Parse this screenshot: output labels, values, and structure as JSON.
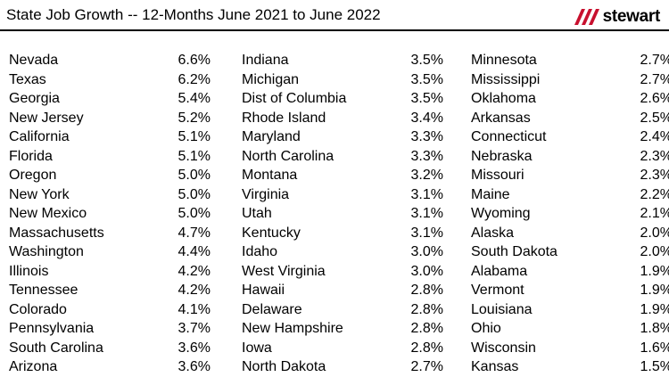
{
  "title": "State Job Growth -- 12-Months June 2021 to June 2022",
  "logo": {
    "text": "stewart",
    "mark_color": "#c8102e"
  },
  "columns": [
    [
      {
        "state": "Nevada",
        "pct": "6.6%"
      },
      {
        "state": "Texas",
        "pct": "6.2%"
      },
      {
        "state": "Georgia",
        "pct": "5.4%"
      },
      {
        "state": "New Jersey",
        "pct": "5.2%"
      },
      {
        "state": "California",
        "pct": "5.1%"
      },
      {
        "state": "Florida",
        "pct": "5.1%"
      },
      {
        "state": "Oregon",
        "pct": "5.0%"
      },
      {
        "state": "New York",
        "pct": "5.0%"
      },
      {
        "state": "New Mexico",
        "pct": "5.0%"
      },
      {
        "state": "Massachusetts",
        "pct": "4.7%"
      },
      {
        "state": "Washington",
        "pct": "4.4%"
      },
      {
        "state": "Illinois",
        "pct": "4.2%"
      },
      {
        "state": "Tennessee",
        "pct": "4.2%"
      },
      {
        "state": "Colorado",
        "pct": "4.1%"
      },
      {
        "state": "Pennsylvania",
        "pct": "3.7%"
      },
      {
        "state": "South Carolina",
        "pct": "3.6%"
      },
      {
        "state": "Arizona",
        "pct": "3.6%"
      }
    ],
    [
      {
        "state": "Indiana",
        "pct": "3.5%"
      },
      {
        "state": "Michigan",
        "pct": "3.5%"
      },
      {
        "state": "Dist of Columbia",
        "pct": "3.5%"
      },
      {
        "state": "Rhode Island",
        "pct": "3.4%"
      },
      {
        "state": "Maryland",
        "pct": "3.3%"
      },
      {
        "state": "North Carolina",
        "pct": "3.3%"
      },
      {
        "state": "Montana",
        "pct": "3.2%"
      },
      {
        "state": "Virginia",
        "pct": "3.1%"
      },
      {
        "state": "Utah",
        "pct": "3.1%"
      },
      {
        "state": "Kentucky",
        "pct": "3.1%"
      },
      {
        "state": "Idaho",
        "pct": "3.0%"
      },
      {
        "state": "West Virginia",
        "pct": "3.0%"
      },
      {
        "state": "Hawaii",
        "pct": "2.8%"
      },
      {
        "state": "Delaware",
        "pct": "2.8%"
      },
      {
        "state": "New Hampshire",
        "pct": "2.8%"
      },
      {
        "state": "Iowa",
        "pct": "2.8%"
      },
      {
        "state": "North Dakota",
        "pct": "2.7%"
      }
    ],
    [
      {
        "state": "Minnesota",
        "pct": "2.7%"
      },
      {
        "state": "Mississippi",
        "pct": "2.7%"
      },
      {
        "state": "Oklahoma",
        "pct": "2.6%"
      },
      {
        "state": "Arkansas",
        "pct": "2.5%"
      },
      {
        "state": "Connecticut",
        "pct": "2.4%"
      },
      {
        "state": "Nebraska",
        "pct": "2.3%"
      },
      {
        "state": "Missouri",
        "pct": "2.3%"
      },
      {
        "state": "Maine",
        "pct": "2.2%"
      },
      {
        "state": "Wyoming",
        "pct": "2.1%"
      },
      {
        "state": "Alaska",
        "pct": "2.0%"
      },
      {
        "state": "South Dakota",
        "pct": "2.0%"
      },
      {
        "state": "Alabama",
        "pct": "1.9%"
      },
      {
        "state": "Vermont",
        "pct": "1.9%"
      },
      {
        "state": "Louisiana",
        "pct": "1.9%"
      },
      {
        "state": "Ohio",
        "pct": "1.8%"
      },
      {
        "state": "Wisconsin",
        "pct": "1.6%"
      },
      {
        "state": "Kansas",
        "pct": "1.5%"
      }
    ]
  ]
}
